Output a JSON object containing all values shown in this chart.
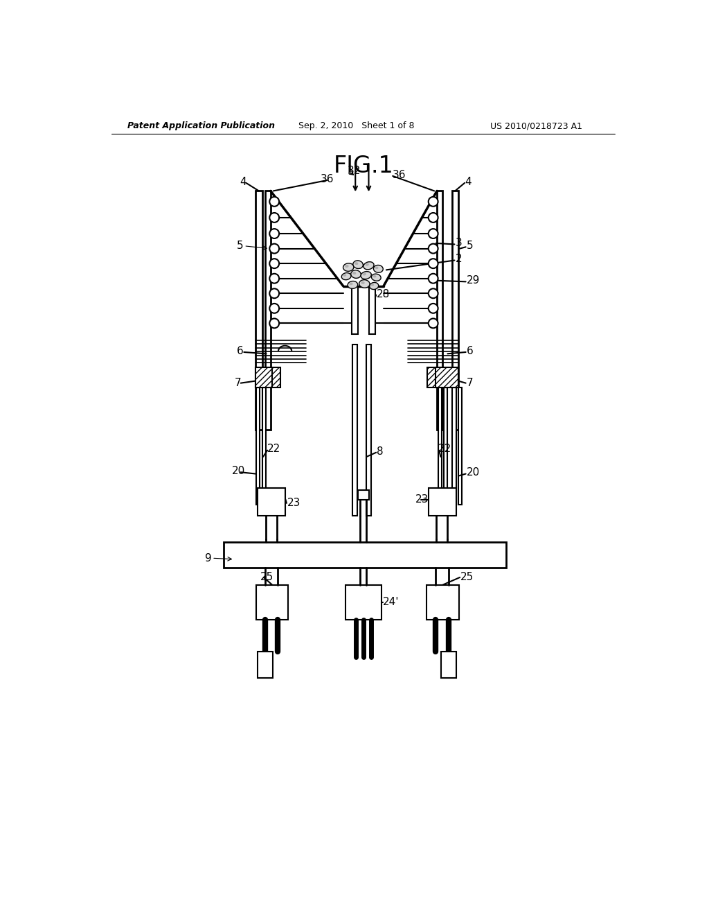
{
  "header_left": "Patent Application Publication",
  "header_middle": "Sep. 2, 2010   Sheet 1 of 8",
  "header_right": "US 2010/0218723 A1",
  "fig_label": "FIG.1",
  "bg_color": "#ffffff",
  "line_color": "#000000"
}
